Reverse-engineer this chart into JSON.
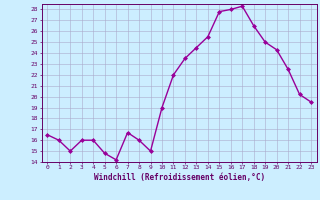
{
  "x": [
    0,
    1,
    2,
    3,
    4,
    5,
    6,
    7,
    8,
    9,
    10,
    11,
    12,
    13,
    14,
    15,
    16,
    17,
    18,
    19,
    20,
    21,
    22,
    23
  ],
  "y": [
    16.5,
    16.0,
    15.0,
    16.0,
    16.0,
    14.8,
    14.2,
    16.7,
    16.0,
    15.0,
    19.0,
    22.0,
    23.5,
    24.5,
    25.5,
    27.8,
    28.0,
    28.3,
    26.5,
    25.0,
    24.3,
    22.5,
    20.2,
    19.5
  ],
  "line_color": "#990099",
  "marker": "D",
  "marker_size": 2.0,
  "bg_color": "#cceeff",
  "grid_color": "#aaaacc",
  "xlabel": "Windchill (Refroidissement éolien,°C)",
  "xlim": [
    -0.5,
    23.5
  ],
  "ylim": [
    14,
    28.5
  ],
  "yticks": [
    14,
    15,
    16,
    17,
    18,
    19,
    20,
    21,
    22,
    23,
    24,
    25,
    26,
    27,
    28
  ],
  "xticks": [
    0,
    1,
    2,
    3,
    4,
    5,
    6,
    7,
    8,
    9,
    10,
    11,
    12,
    13,
    14,
    15,
    16,
    17,
    18,
    19,
    20,
    21,
    22,
    23
  ],
  "axis_color": "#660066",
  "tick_color": "#660066",
  "label_color": "#660066",
  "linewidth": 1.0,
  "tick_fontsize": 4.5,
  "xlabel_fontsize": 5.5
}
